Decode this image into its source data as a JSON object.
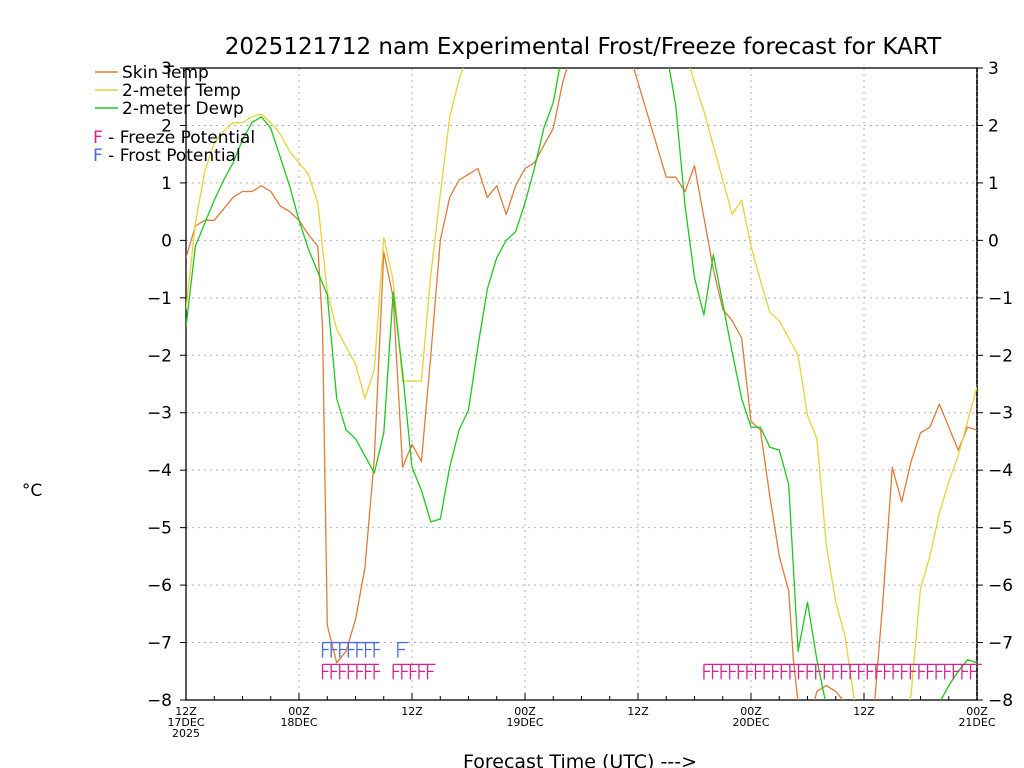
{
  "chart_data": {
    "type": "line",
    "title": "2025121712 nam Experimental Frost/Freeze forecast for KART",
    "ylabel": "°C",
    "xlabel": "Forecast Time (UTC) --->",
    "ylim": [
      -8,
      3
    ],
    "xlim": [
      0,
      84
    ],
    "y_ticks": [
      -8,
      -7,
      -6,
      -5,
      -4,
      -3,
      -2,
      -1,
      0,
      1,
      2,
      3
    ],
    "y_tick_labels": [
      "−8",
      "−7",
      "−6",
      "−5",
      "−4",
      "−3",
      "−2",
      "−1",
      "0",
      "1",
      "2",
      "3"
    ],
    "x_ticks": [
      {
        "x": 0,
        "lines": [
          "12Z",
          "17DEC",
          "2025"
        ]
      },
      {
        "x": 12,
        "lines": [
          "00Z",
          "18DEC"
        ]
      },
      {
        "x": 24,
        "lines": [
          "12Z"
        ]
      },
      {
        "x": 36,
        "lines": [
          "00Z",
          "19DEC"
        ]
      },
      {
        "x": 48,
        "lines": [
          "12Z"
        ]
      },
      {
        "x": 60,
        "lines": [
          "00Z",
          "20DEC"
        ]
      },
      {
        "x": 72,
        "lines": [
          "12Z"
        ]
      },
      {
        "x": 84,
        "lines": [
          "00Z",
          "21DEC"
        ]
      }
    ],
    "grid": true,
    "legend": [
      {
        "label": "Skin Temp",
        "color": "#e07b39"
      },
      {
        "label": "2-meter Temp",
        "color": "#e6d23a"
      },
      {
        "label": "2-meter Dewp",
        "color": "#1fc71f"
      }
    ],
    "flag_legend": [
      {
        "letter": "F",
        "text": " - Freeze Potential",
        "color": "#d6228e"
      },
      {
        "letter": "F",
        "text": " - Frost Potential",
        "color": "#4a6ad6"
      }
    ],
    "series": [
      {
        "name": "Skin Temp",
        "color": "#e07b39",
        "points": [
          [
            0,
            -0.3
          ],
          [
            1,
            0.25
          ],
          [
            2,
            0.35
          ],
          [
            3,
            0.35
          ],
          [
            4,
            0.55
          ],
          [
            5,
            0.75
          ],
          [
            6,
            0.85
          ],
          [
            7,
            0.85
          ],
          [
            8,
            0.95
          ],
          [
            9,
            0.85
          ],
          [
            10,
            0.6
          ],
          [
            11,
            0.5
          ],
          [
            12,
            0.35
          ],
          [
            13,
            0.1
          ],
          [
            14,
            -0.1
          ],
          [
            14.5,
            -1.5
          ],
          [
            15,
            -6.7
          ],
          [
            16,
            -7.35
          ],
          [
            17,
            -7.15
          ],
          [
            18,
            -6.6
          ],
          [
            19,
            -5.7
          ],
          [
            20,
            -3.8
          ],
          [
            21,
            -0.2
          ],
          [
            22,
            -1.0
          ],
          [
            23,
            -3.95
          ],
          [
            24,
            -3.55
          ],
          [
            25,
            -3.85
          ],
          [
            26,
            -2.0
          ],
          [
            27,
            0.0
          ],
          [
            28,
            0.75
          ],
          [
            29,
            1.05
          ],
          [
            30,
            1.15
          ],
          [
            31,
            1.25
          ],
          [
            32,
            0.75
          ],
          [
            33,
            0.95
          ],
          [
            34,
            0.45
          ],
          [
            35,
            0.95
          ],
          [
            36,
            1.25
          ],
          [
            37,
            1.35
          ],
          [
            38,
            1.65
          ],
          [
            39,
            1.95
          ],
          [
            40,
            2.75
          ],
          [
            41,
            3.3
          ],
          [
            47,
            3.3
          ],
          [
            48,
            2.75
          ],
          [
            49,
            2.2
          ],
          [
            50,
            1.65
          ],
          [
            51,
            1.1
          ],
          [
            52,
            1.1
          ],
          [
            53,
            0.85
          ],
          [
            54,
            1.3
          ],
          [
            55,
            0.4
          ],
          [
            56,
            -0.5
          ],
          [
            57,
            -1.2
          ],
          [
            58,
            -1.4
          ],
          [
            59,
            -1.7
          ],
          [
            60,
            -3.15
          ],
          [
            61,
            -3.3
          ],
          [
            62,
            -4.45
          ],
          [
            63,
            -5.5
          ],
          [
            64,
            -6.1
          ],
          [
            64.5,
            -7.3
          ],
          [
            65,
            -8.05
          ],
          [
            66,
            -8.5
          ],
          [
            67,
            -7.85
          ],
          [
            68,
            -7.75
          ],
          [
            69,
            -7.85
          ],
          [
            70,
            -8.05
          ],
          [
            71,
            -8.3
          ],
          [
            72,
            -8.4
          ],
          [
            73,
            -8.3
          ],
          [
            74,
            -6.3
          ],
          [
            75,
            -3.95
          ],
          [
            76,
            -4.55
          ],
          [
            77,
            -3.85
          ],
          [
            78,
            -3.35
          ],
          [
            79,
            -3.25
          ],
          [
            80,
            -2.85
          ],
          [
            81,
            -3.25
          ],
          [
            82,
            -3.65
          ],
          [
            83,
            -3.25
          ],
          [
            84,
            -3.3
          ]
        ]
      },
      {
        "name": "2-meter Temp",
        "color": "#e6d23a",
        "points": [
          [
            0,
            -1.2
          ],
          [
            1,
            0.3
          ],
          [
            2,
            1.2
          ],
          [
            3,
            1.7
          ],
          [
            4,
            1.9
          ],
          [
            5,
            2.05
          ],
          [
            6,
            2.05
          ],
          [
            7,
            2.15
          ],
          [
            8,
            2.2
          ],
          [
            9,
            2.05
          ],
          [
            10,
            1.85
          ],
          [
            11,
            1.55
          ],
          [
            12,
            1.35
          ],
          [
            13,
            1.15
          ],
          [
            14,
            0.65
          ],
          [
            15,
            -0.9
          ],
          [
            16,
            -1.55
          ],
          [
            17,
            -1.85
          ],
          [
            18,
            -2.15
          ],
          [
            19,
            -2.75
          ],
          [
            20,
            -2.25
          ],
          [
            21,
            0.05
          ],
          [
            22,
            -0.7
          ],
          [
            23,
            -2.45
          ],
          [
            24,
            -2.45
          ],
          [
            25,
            -2.45
          ],
          [
            26,
            -0.6
          ],
          [
            27,
            0.8
          ],
          [
            28,
            2.15
          ],
          [
            29,
            2.8
          ],
          [
            30,
            3.3
          ],
          [
            53,
            3.3
          ],
          [
            54,
            2.75
          ],
          [
            55,
            2.25
          ],
          [
            56,
            1.65
          ],
          [
            57,
            1.05
          ],
          [
            58,
            0.45
          ],
          [
            59,
            0.7
          ],
          [
            60,
            -0.1
          ],
          [
            61,
            -0.7
          ],
          [
            62,
            -1.25
          ],
          [
            63,
            -1.4
          ],
          [
            64,
            -1.7
          ],
          [
            65,
            -2.0
          ],
          [
            66,
            -3.05
          ],
          [
            67,
            -3.45
          ],
          [
            68,
            -5.3
          ],
          [
            69,
            -6.3
          ],
          [
            70,
            -6.9
          ],
          [
            71,
            -8.05
          ],
          [
            72,
            -8.6
          ],
          [
            76,
            -8.6
          ],
          [
            77,
            -7.9
          ],
          [
            78,
            -6.05
          ],
          [
            79,
            -5.5
          ],
          [
            80,
            -4.75
          ],
          [
            81,
            -4.2
          ],
          [
            82,
            -3.75
          ],
          [
            83,
            -3.15
          ],
          [
            84,
            -2.55
          ]
        ]
      },
      {
        "name": "2-meter Dewp",
        "color": "#1fc71f",
        "points": [
          [
            0,
            -1.5
          ],
          [
            1,
            -0.1
          ],
          [
            2,
            0.3
          ],
          [
            3,
            0.7
          ],
          [
            4,
            1.05
          ],
          [
            5,
            1.35
          ],
          [
            6,
            1.75
          ],
          [
            7,
            2.05
          ],
          [
            8,
            2.15
          ],
          [
            9,
            1.95
          ],
          [
            10,
            1.45
          ],
          [
            11,
            0.95
          ],
          [
            12,
            0.35
          ],
          [
            13,
            -0.15
          ],
          [
            14,
            -0.55
          ],
          [
            15,
            -0.95
          ],
          [
            16,
            -2.75
          ],
          [
            17,
            -3.3
          ],
          [
            18,
            -3.45
          ],
          [
            19,
            -3.75
          ],
          [
            20,
            -4.05
          ],
          [
            21,
            -3.35
          ],
          [
            22,
            -0.9
          ],
          [
            23,
            -2.3
          ],
          [
            24,
            -3.95
          ],
          [
            25,
            -4.35
          ],
          [
            26,
            -4.9
          ],
          [
            27,
            -4.85
          ],
          [
            28,
            -3.95
          ],
          [
            29,
            -3.3
          ],
          [
            30,
            -2.95
          ],
          [
            31,
            -1.85
          ],
          [
            32,
            -0.85
          ],
          [
            33,
            -0.3
          ],
          [
            34,
            0.0
          ],
          [
            35,
            0.15
          ],
          [
            36,
            0.65
          ],
          [
            37,
            1.25
          ],
          [
            38,
            1.95
          ],
          [
            39,
            2.4
          ],
          [
            40,
            3.3
          ],
          [
            51,
            3.3
          ],
          [
            52,
            2.35
          ],
          [
            53,
            0.6
          ],
          [
            54,
            -0.65
          ],
          [
            55,
            -1.3
          ],
          [
            56,
            -0.25
          ],
          [
            57,
            -1.1
          ],
          [
            58,
            -1.95
          ],
          [
            59,
            -2.75
          ],
          [
            60,
            -3.25
          ],
          [
            61,
            -3.25
          ],
          [
            62,
            -3.6
          ],
          [
            63,
            -3.65
          ],
          [
            64,
            -4.25
          ],
          [
            65,
            -7.15
          ],
          [
            66,
            -6.3
          ],
          [
            67,
            -7.3
          ],
          [
            68,
            -8.1
          ],
          [
            80,
            -8.05
          ],
          [
            81,
            -7.75
          ],
          [
            82,
            -7.5
          ],
          [
            83,
            -7.3
          ],
          [
            84,
            -7.35
          ]
        ]
      }
    ],
    "frost_flags": {
      "label": "FFFFFFF",
      "x_start": 14.5,
      "x_end": 20.5,
      "single_x": 22.5
    },
    "freeze_flags": {
      "label": "FFFFFFF",
      "x_start": 14.5,
      "x_end": 20.5,
      "x2_start": 22,
      "x2_end": 26.5,
      "x3_start": 55,
      "x3_end": 84.5
    }
  }
}
